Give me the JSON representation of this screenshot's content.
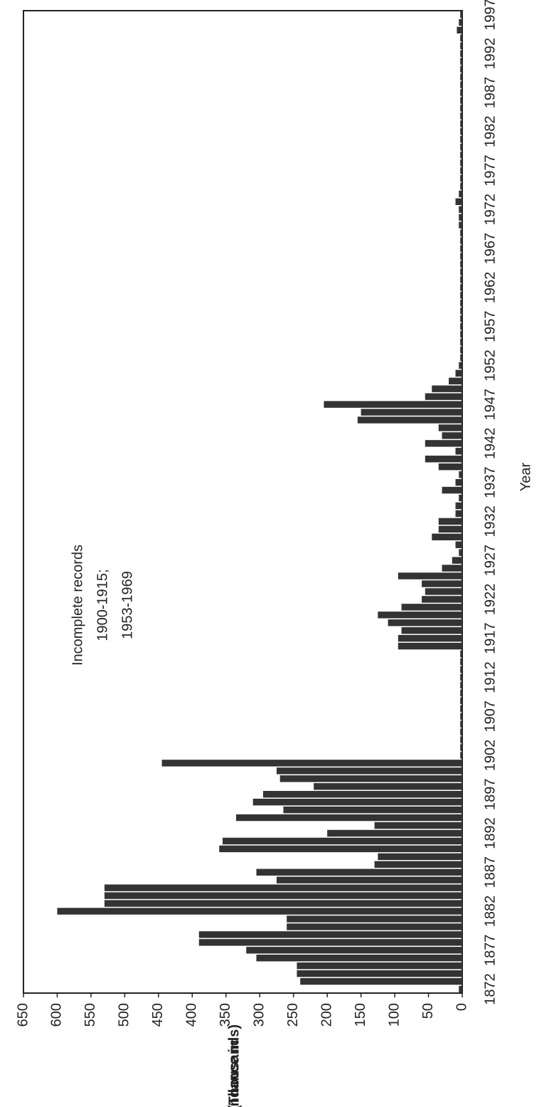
{
  "chart_data": {
    "type": "bar",
    "annotation": [
      "Incomplete records",
      "1900-1915;",
      "1953-1969"
    ],
    "y_label": [
      "Abundance in",
      "(Thousands)"
    ],
    "x_label": "Year",
    "categories": [
      "1872",
      null,
      null,
      null,
      null,
      "1877",
      null,
      null,
      null,
      null,
      "1882",
      null,
      null,
      null,
      null,
      "1887",
      null,
      null,
      null,
      null,
      "1892",
      null,
      null,
      null,
      null,
      "1897",
      null,
      null,
      null,
      null,
      "1902",
      null,
      null,
      null,
      null,
      "1907",
      null,
      null,
      null,
      null,
      "1912",
      null,
      null,
      null,
      null,
      "1917",
      null,
      null,
      null,
      null,
      "1922",
      null,
      null,
      null,
      null,
      "1927",
      null,
      null,
      null,
      null,
      "1932",
      null,
      null,
      null,
      null,
      "1937",
      null,
      null,
      null,
      null,
      "1942",
      null,
      null,
      null,
      null,
      "1947",
      null,
      null,
      null,
      null,
      "1952",
      null,
      null,
      null,
      null,
      "1957",
      null,
      null,
      null,
      null,
      "1962",
      null,
      null,
      null,
      null,
      "1967",
      null,
      null,
      null,
      null,
      "1972",
      null,
      null,
      null,
      null,
      "1977",
      null,
      null,
      null,
      null,
      "1982",
      null,
      null,
      null,
      null,
      "1987",
      null,
      null,
      null,
      null,
      "1992",
      null,
      null,
      null,
      null,
      "1997"
    ],
    "values": [
      5,
      240,
      245,
      245,
      305,
      320,
      390,
      390,
      260,
      260,
      600,
      530,
      530,
      530,
      275,
      305,
      130,
      125,
      360,
      355,
      200,
      130,
      335,
      265,
      310,
      295,
      220,
      270,
      275,
      445,
      3,
      3,
      3,
      3,
      3,
      3,
      3,
      3,
      3,
      3,
      3,
      3,
      3,
      3,
      95,
      95,
      90,
      110,
      125,
      90,
      60,
      55,
      60,
      95,
      30,
      15,
      5,
      10,
      45,
      35,
      35,
      10,
      10,
      5,
      30,
      10,
      5,
      35,
      55,
      10,
      55,
      30,
      35,
      155,
      150,
      205,
      55,
      45,
      20,
      10,
      5,
      3,
      3,
      3,
      3,
      3,
      3,
      3,
      3,
      3,
      3,
      3,
      3,
      3,
      3,
      3,
      3,
      3,
      5,
      5,
      5,
      10,
      5,
      3,
      3,
      3,
      3,
      3,
      3,
      3,
      3,
      3,
      3,
      3,
      3,
      3,
      3,
      3,
      3,
      3,
      3,
      3,
      3,
      8,
      5,
      3
    ],
    "color": "#333333",
    "ylim": [
      0,
      650
    ],
    "yticks": [
      0,
      50,
      100,
      150,
      200,
      250,
      300,
      350,
      400,
      450,
      500,
      550,
      600,
      650
    ],
    "grid": false
  }
}
